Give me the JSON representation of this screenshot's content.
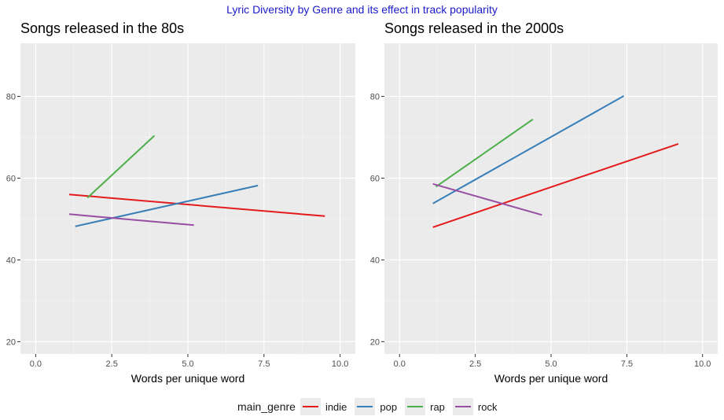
{
  "title": "Lyric Diversity by Genre and its effect in track popularity",
  "legend": {
    "title": "main_genre",
    "entries": [
      {
        "label": "indie",
        "color": "#e41a1c"
      },
      {
        "label": "pop",
        "color": "#377eb8"
      },
      {
        "label": "rap",
        "color": "#4daf4a"
      },
      {
        "label": "rock",
        "color": "#984ea3"
      }
    ]
  },
  "chart_data": [
    {
      "type": "line",
      "title": "Songs released in the 80s",
      "xlabel": "Words per unique word",
      "ylabel": "",
      "xlim": [
        -0.5,
        10.5
      ],
      "ylim": [
        17,
        93
      ],
      "xticks": [
        0.0,
        2.5,
        5.0,
        7.5,
        10.0
      ],
      "xtick_labels": [
        "0.0",
        "2.5",
        "5.0",
        "7.5",
        "10.0"
      ],
      "yticks": [
        20,
        40,
        60,
        80
      ],
      "ytick_labels": [
        "20",
        "40",
        "60",
        "80"
      ],
      "grid": true,
      "series": [
        {
          "name": "indie",
          "x": [
            1.1,
            9.5
          ],
          "y": [
            56.0,
            50.7
          ]
        },
        {
          "name": "pop",
          "x": [
            1.3,
            7.3
          ],
          "y": [
            48.2,
            58.2
          ]
        },
        {
          "name": "rap",
          "x": [
            1.7,
            3.9
          ],
          "y": [
            55.2,
            70.4
          ]
        },
        {
          "name": "rock",
          "x": [
            1.1,
            5.2
          ],
          "y": [
            51.2,
            48.5
          ]
        }
      ]
    },
    {
      "type": "line",
      "title": "Songs released in the 2000s",
      "xlabel": "Words per unique word",
      "ylabel": "",
      "xlim": [
        -0.5,
        10.5
      ],
      "ylim": [
        17,
        93
      ],
      "xticks": [
        0.0,
        2.5,
        5.0,
        7.5,
        10.0
      ],
      "xtick_labels": [
        "0.0",
        "2.5",
        "5.0",
        "7.5",
        "10.0"
      ],
      "yticks": [
        20,
        40,
        60,
        80
      ],
      "ytick_labels": [
        "20",
        "40",
        "60",
        "80"
      ],
      "grid": true,
      "series": [
        {
          "name": "indie",
          "x": [
            1.1,
            9.2
          ],
          "y": [
            48.0,
            68.4
          ]
        },
        {
          "name": "pop",
          "x": [
            1.1,
            7.4
          ],
          "y": [
            53.8,
            80.1
          ]
        },
        {
          "name": "rap",
          "x": [
            1.2,
            4.4
          ],
          "y": [
            57.9,
            74.4
          ]
        },
        {
          "name": "rock",
          "x": [
            1.1,
            4.7
          ],
          "y": [
            58.6,
            51.0
          ]
        }
      ]
    }
  ]
}
